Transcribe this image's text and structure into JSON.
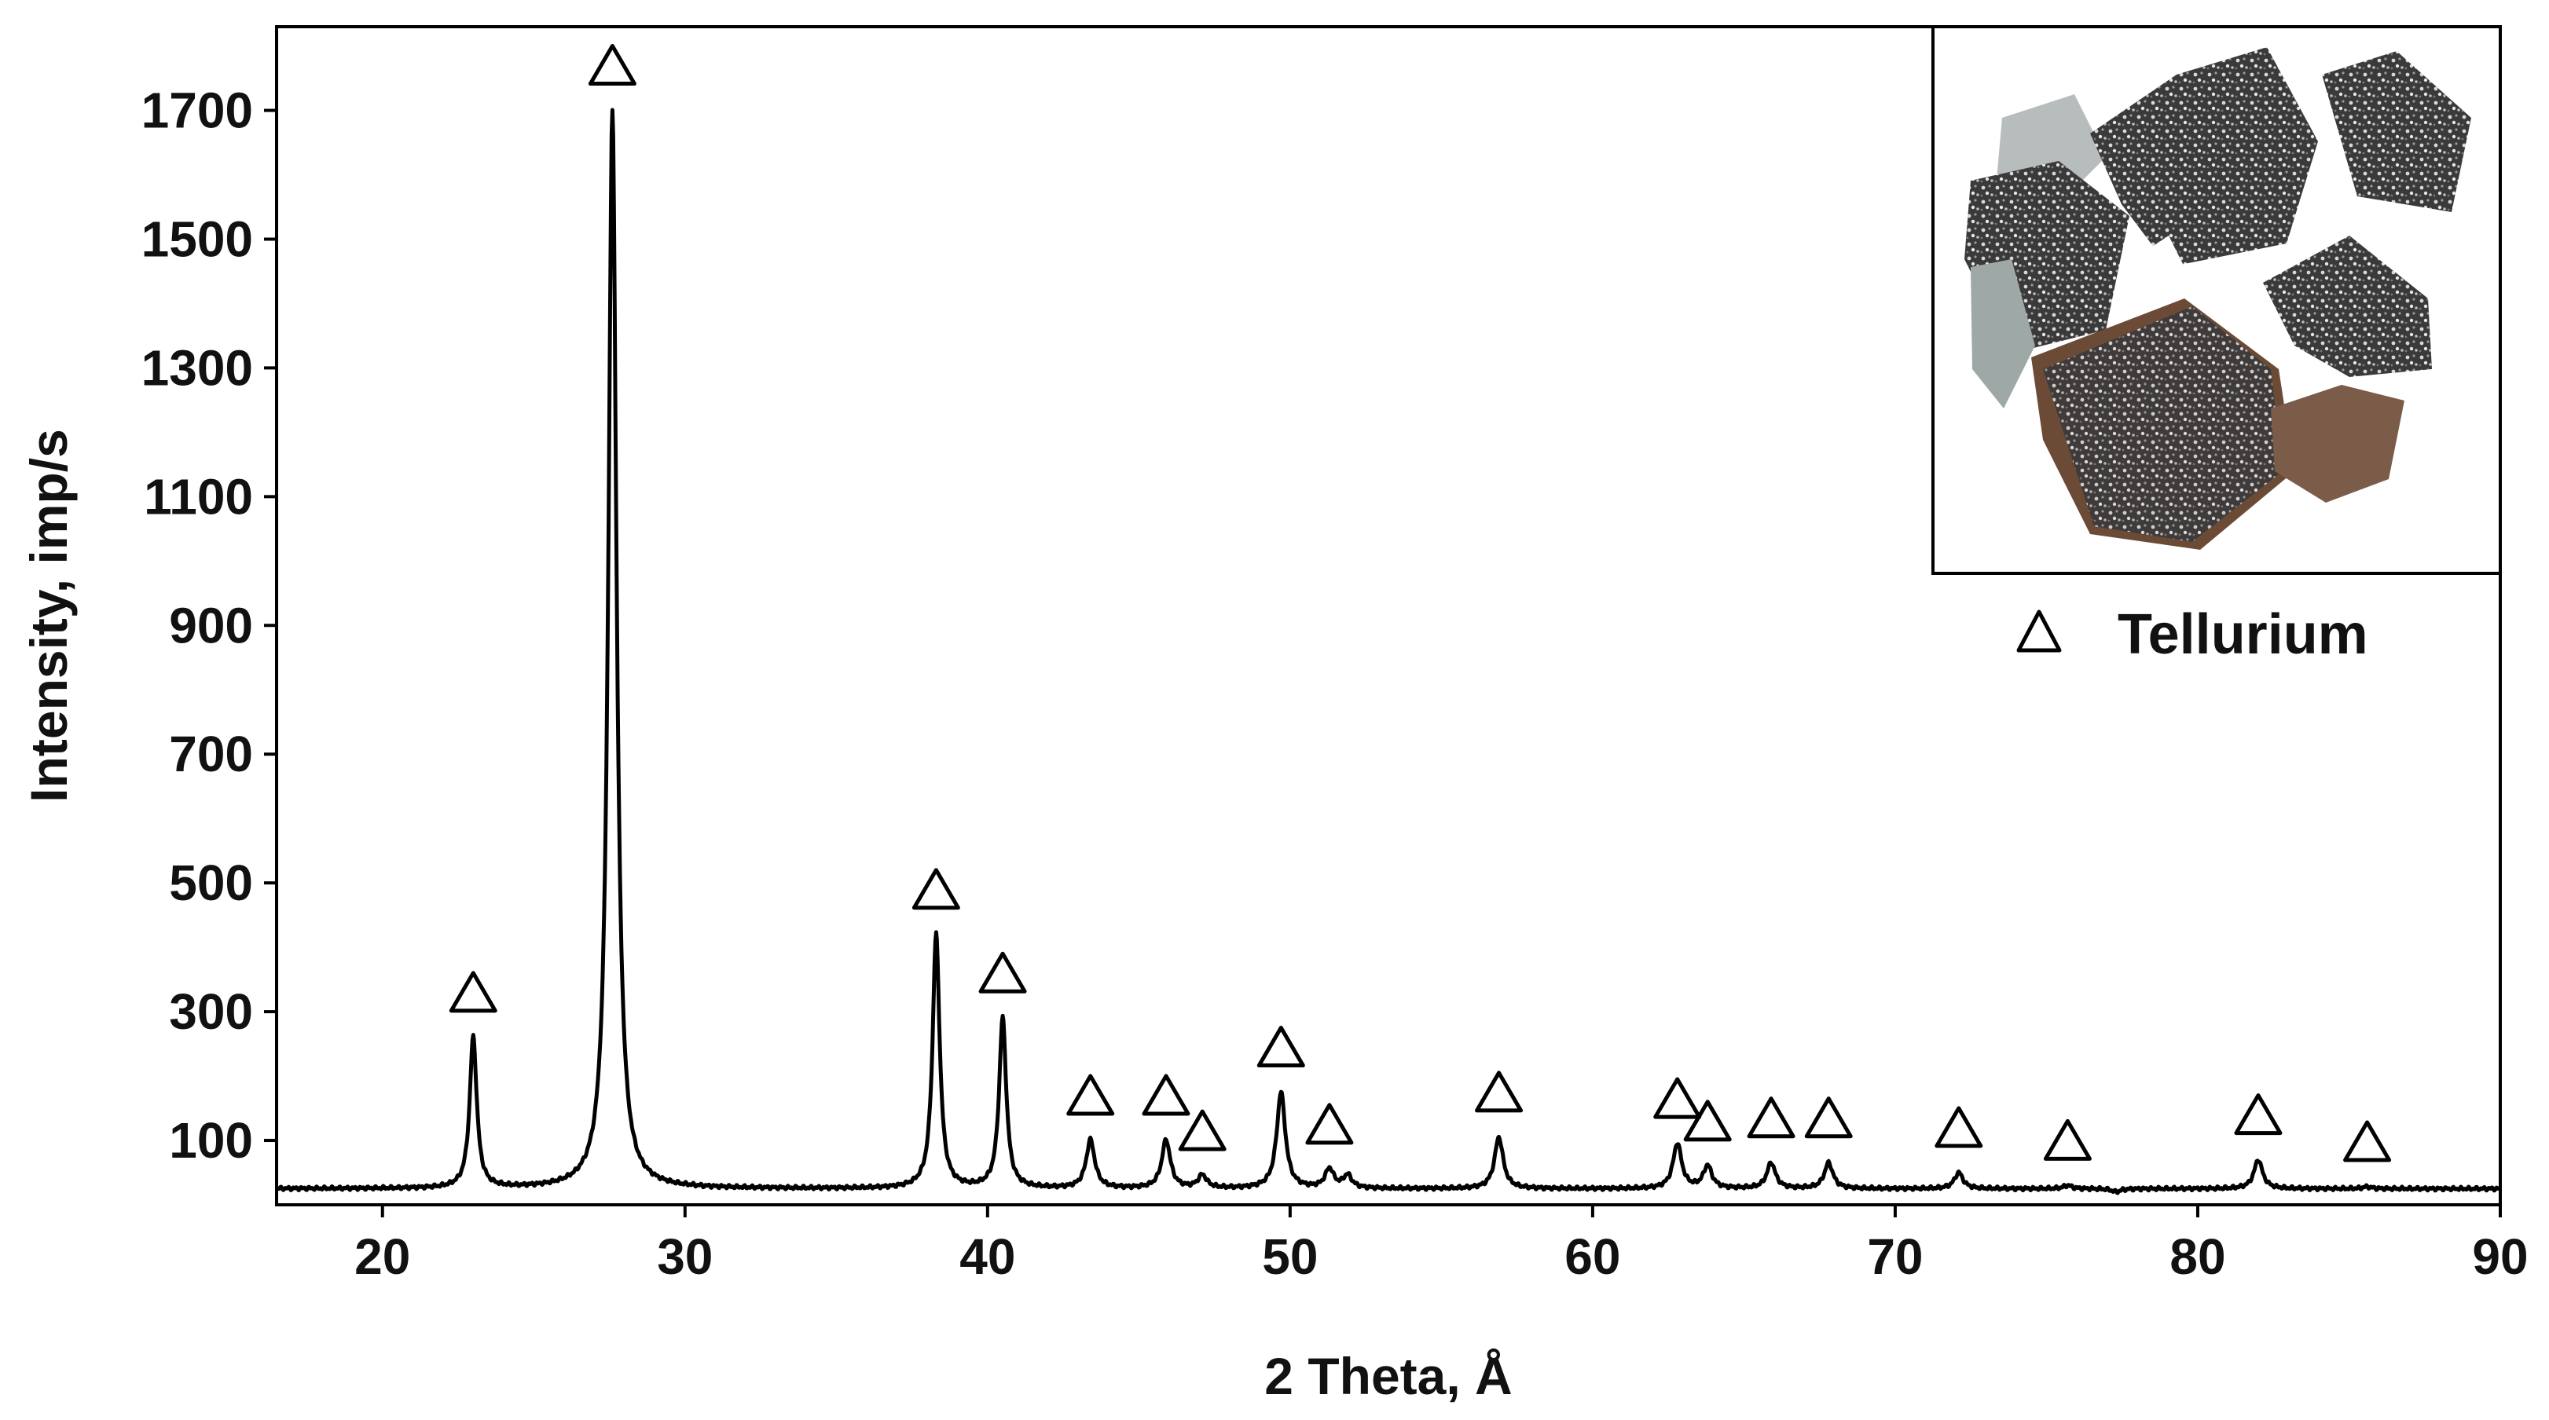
{
  "chart_data": {
    "type": "line",
    "xlabel": "2 Theta, Å",
    "ylabel": "Intensity, imp/s",
    "xlim": [
      16.5,
      90
    ],
    "ylim": [
      0,
      1830
    ],
    "x_ticks": [
      20,
      30,
      40,
      50,
      60,
      70,
      80,
      90
    ],
    "y_ticks": [
      100,
      300,
      500,
      700,
      900,
      1100,
      1300,
      1500,
      1700
    ],
    "grid": false,
    "baseline": 25,
    "line_color": "#000000",
    "legend": {
      "position": "top-right",
      "marker": "△",
      "label": "Tellurium"
    },
    "inset": {
      "position": "top-right",
      "content": "photograph of tellurium sample fragments"
    },
    "peaks": [
      {
        "x": 23.0,
        "y": 260,
        "marked": true
      },
      {
        "x": 27.6,
        "y": 1700,
        "marked": true
      },
      {
        "x": 38.3,
        "y": 420,
        "marked": true
      },
      {
        "x": 40.5,
        "y": 290,
        "marked": true
      },
      {
        "x": 43.4,
        "y": 100,
        "marked": true
      },
      {
        "x": 45.9,
        "y": 100,
        "marked": true
      },
      {
        "x": 47.1,
        "y": 45,
        "marked": true
      },
      {
        "x": 49.7,
        "y": 175,
        "marked": true
      },
      {
        "x": 51.3,
        "y": 55,
        "marked": true
      },
      {
        "x": 51.9,
        "y": 45,
        "marked": false
      },
      {
        "x": 56.9,
        "y": 105,
        "marked": true
      },
      {
        "x": 62.8,
        "y": 95,
        "marked": true
      },
      {
        "x": 63.8,
        "y": 60,
        "marked": true
      },
      {
        "x": 65.9,
        "y": 65,
        "marked": true
      },
      {
        "x": 67.8,
        "y": 65,
        "marked": true
      },
      {
        "x": 72.1,
        "y": 50,
        "marked": true
      },
      {
        "x": 75.7,
        "y": 30,
        "marked": true
      },
      {
        "x": 77.3,
        "y": 20,
        "marked": false
      },
      {
        "x": 82.0,
        "y": 70,
        "marked": true
      },
      {
        "x": 85.6,
        "y": 28,
        "marked": true
      }
    ]
  }
}
